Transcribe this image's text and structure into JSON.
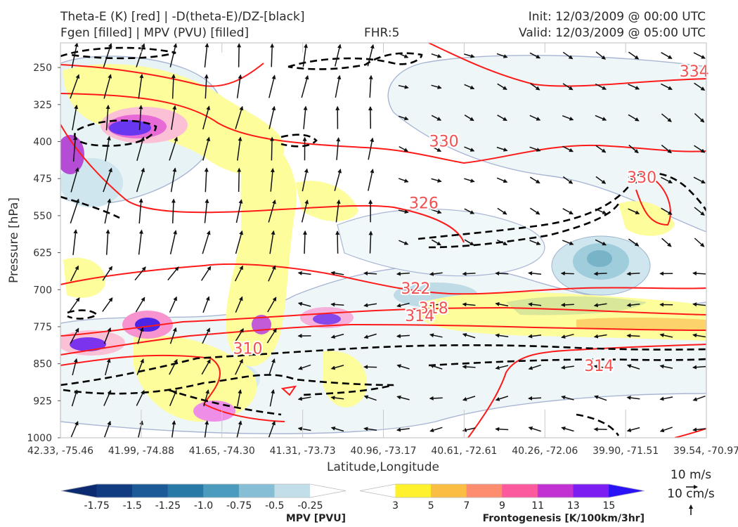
{
  "header": {
    "line1_left": "Theta-E (K) [red] | -D(theta-E)/DZ-[black]",
    "line2_left": "Fgen [filled] | MPV (PVU) [filled]",
    "center": "FHR:5",
    "init": "Init: 12/03/2009 @ 00:00 UTC",
    "valid": "Valid: 12/03/2009 @ 05:00 UTC"
  },
  "chart_data": {
    "type": "cross-section",
    "ylabel": "Pressure [hPa]",
    "xlabel": "Latitude,Longitude",
    "y_ticks": [
      250,
      325,
      400,
      475,
      550,
      625,
      700,
      775,
      850,
      925,
      1000
    ],
    "ylim": [
      1000,
      200
    ],
    "x_ticks": [
      "42.33, -75.46",
      "41.99, -74.88",
      "41.65, -74.30",
      "41.31, -73.73",
      "40.96, -73.17",
      "40.61, -72.61",
      "40.26, -72.06",
      "39.90, -71.51",
      "39.54, -70.97"
    ],
    "theta_e_labels": [
      {
        "text": "334",
        "x": 7.85,
        "p": 268
      },
      {
        "text": "330",
        "x": 4.75,
        "p": 410
      },
      {
        "text": "330",
        "x": 7.2,
        "p": 483
      },
      {
        "text": "326",
        "x": 4.5,
        "p": 535
      },
      {
        "text": "322",
        "x": 4.4,
        "p": 708
      },
      {
        "text": "318",
        "x": 4.62,
        "p": 748
      },
      {
        "text": "314",
        "x": 4.45,
        "p": 764
      },
      {
        "text": "310",
        "x": 2.32,
        "p": 830
      },
      {
        "text": "314",
        "x": 6.67,
        "p": 865
      }
    ],
    "wind_key": {
      "horizontal": "10 m/s",
      "vertical": "10 cm/s"
    },
    "colorbars": {
      "mpv": {
        "label": "MPV [PVU]",
        "ticks": [
          "-1.75",
          "-1.5",
          "-1.25",
          "-1.0",
          "-0.75",
          "-0.5",
          "-0.25"
        ],
        "colors": [
          "#0b2a6f",
          "#113c82",
          "#1b5a96",
          "#2979a6",
          "#4a9bbd",
          "#86bfd5",
          "#c2dfe9",
          "#ffffff"
        ]
      },
      "fgen": {
        "label": "Frontogenesis [K/100km/3hr]",
        "ticks": [
          "3",
          "5",
          "7",
          "9",
          "11",
          "13",
          "15"
        ],
        "colors": [
          "#ffffff",
          "#fff12b",
          "#fbbe45",
          "#fc8e6f",
          "#fb5a9f",
          "#c232d2",
          "#7c1df2",
          "#2a13f7"
        ]
      }
    }
  }
}
